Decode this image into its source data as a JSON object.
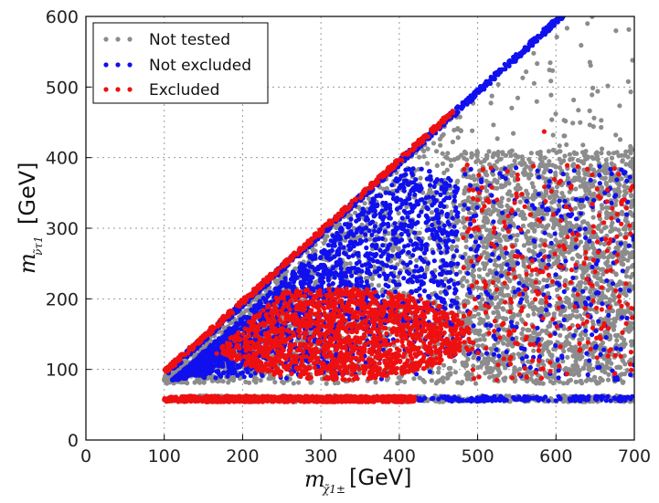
{
  "chart_data": {
    "type": "scatter",
    "title": "",
    "xlabel": "[GeV]",
    "xlabel_symbol": "m",
    "xlabel_sub": "χ̃1±",
    "ylabel": "[GeV]",
    "ylabel_symbol": "m",
    "ylabel_sub": "ν̃τ1",
    "xlim": [
      0,
      700
    ],
    "ylim": [
      0,
      600
    ],
    "xticks": [
      0,
      100,
      200,
      300,
      400,
      500,
      600,
      700
    ],
    "yticks": [
      0,
      100,
      200,
      300,
      400,
      500,
      600
    ],
    "grid": true,
    "legend_position": "top-left",
    "series": [
      {
        "name": "Not tested",
        "color": "#8c8c8c",
        "regions": [
          {
            "kind": "triangle-band",
            "x": [
              100,
              700
            ],
            "y_min": 80,
            "y_max_rel": "x-10",
            "density": "high"
          },
          {
            "kind": "rect",
            "x": [
              480,
              700
            ],
            "y": [
              80,
              410
            ],
            "density": "high"
          },
          {
            "kind": "sparse-upper",
            "x": [
              480,
              700
            ],
            "y": [
              400,
              600
            ],
            "density": "low"
          },
          {
            "kind": "strip",
            "x": [
              100,
              700
            ],
            "y": [
              54,
              63
            ],
            "density": "medium"
          }
        ]
      },
      {
        "name": "Not excluded",
        "color": "#1010ee",
        "regions": [
          {
            "kind": "diagonal-band",
            "x": [
              105,
              610
            ],
            "offset": [
              -12,
              -2
            ],
            "density": "high"
          },
          {
            "kind": "wedge",
            "x": [
              110,
              475
            ],
            "y": [
              85,
              390
            ],
            "density": "high"
          },
          {
            "kind": "scatter-rect",
            "x": [
              480,
              700
            ],
            "y": [
              85,
              390
            ],
            "density": "low"
          },
          {
            "kind": "strip",
            "x": [
              420,
              700
            ],
            "y": [
              55,
              62
            ],
            "density": "low"
          }
        ]
      },
      {
        "name": "Excluded",
        "color": "#ee1010",
        "regions": [
          {
            "kind": "diagonal-line",
            "x": [
              100,
              470
            ],
            "offset": [
              -8,
              0
            ],
            "density": "high"
          },
          {
            "kind": "ellipse-blob",
            "center": [
              320,
              150
            ],
            "x": [
              130,
              470
            ],
            "y": [
              85,
              215
            ],
            "density": "high"
          },
          {
            "kind": "scatter-rect",
            "x": [
              480,
              700
            ],
            "y": [
              85,
              390
            ],
            "density": "low"
          },
          {
            "kind": "strip",
            "x": [
              100,
              420
            ],
            "y": [
              54,
              62
            ],
            "density": "high"
          },
          {
            "kind": "outlier",
            "x": 585,
            "y": 437
          }
        ]
      }
    ]
  }
}
